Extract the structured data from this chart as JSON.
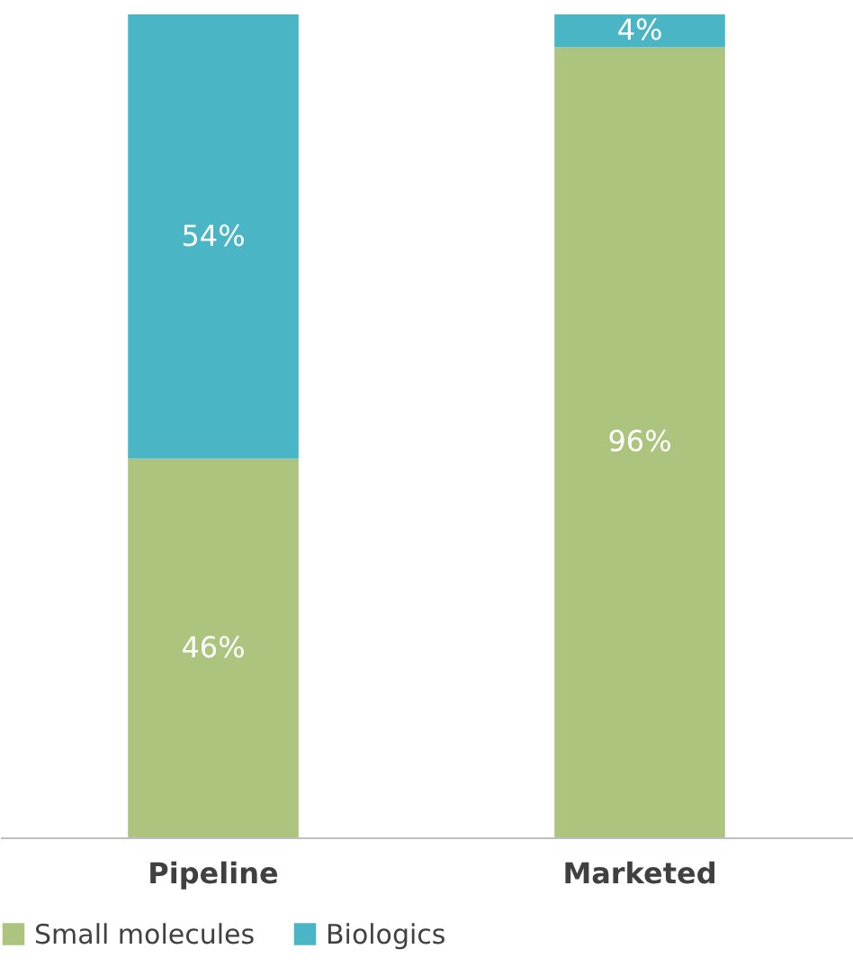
{
  "chart_data": {
    "type": "bar",
    "stacked": true,
    "categories": [
      "Pipeline",
      "Marketed"
    ],
    "series": [
      {
        "name": "Small molecules",
        "color": "#adc47f",
        "values": [
          46,
          96
        ],
        "value_labels": [
          "46%",
          "96%"
        ]
      },
      {
        "name": "Biologics",
        "color": "#4ab5c4",
        "values": [
          54,
          4
        ],
        "value_labels": [
          "54%",
          "4%"
        ]
      }
    ],
    "legend": "bottom",
    "grid": false
  }
}
